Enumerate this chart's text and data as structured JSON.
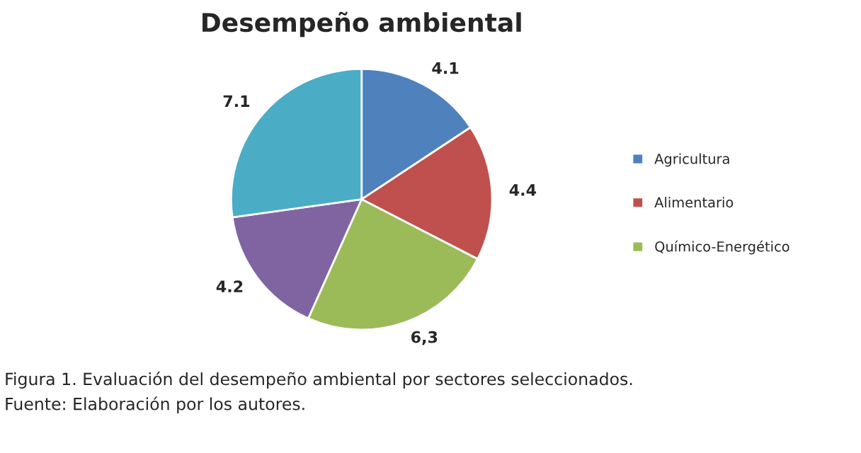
{
  "chart_data": {
    "type": "pie",
    "title": "Desempeño ambiental",
    "categories": [
      "Agricultura",
      "Alimentario",
      "Químico-Energético",
      null,
      null
    ],
    "values": [
      4.1,
      4.4,
      6.3,
      4.2,
      7.1
    ],
    "value_labels": [
      "4.1",
      "4.4",
      "6,3",
      "4.2",
      "7.1"
    ],
    "colors": [
      "#4f81bd",
      "#c0504d",
      "#9bbb59",
      "#8064a2",
      "#4bacc6"
    ],
    "legend": "right",
    "annotations": [
      "Figura 1. Evaluación del desempeño ambiental por sectores seleccionados.",
      "Fuente: Elaboración por los autores."
    ]
  }
}
